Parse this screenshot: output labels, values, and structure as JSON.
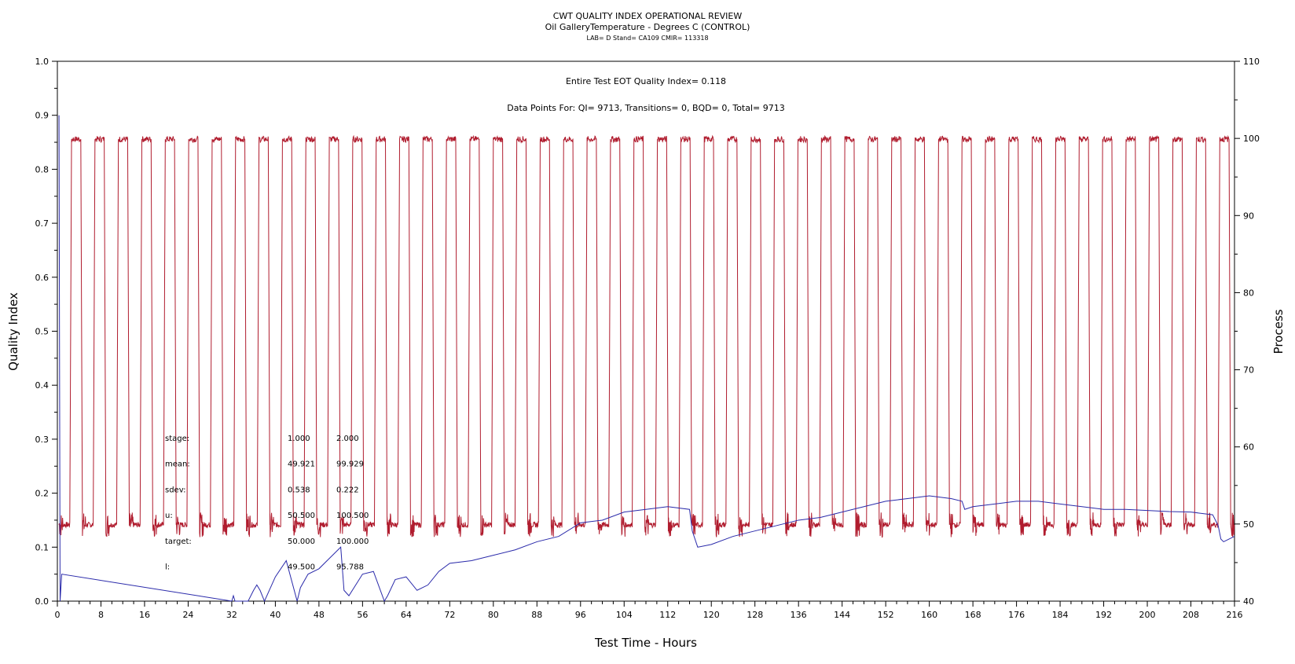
{
  "chart_data": {
    "type": "line",
    "title": "CWT QUALITY INDEX OPERATIONAL REVIEW",
    "subtitle": "Oil GalleryTemperature - Degrees C (CONTROL)",
    "subtitle2": "LAB= D Stand= CA109 CMIR= 113318",
    "xlabel": "Test Time - Hours",
    "ylabel_left": "Quality Index",
    "ylabel_right": "Process",
    "xlim": [
      0,
      216
    ],
    "ylim_left": [
      0.0,
      1.0
    ],
    "ylim_right": [
      40,
      110
    ],
    "x_ticks": [
      "0",
      "8",
      "16",
      "24",
      "32",
      "40",
      "48",
      "56",
      "64",
      "72",
      "80",
      "88",
      "96",
      "104",
      "112",
      "120",
      "128",
      "136",
      "144",
      "152",
      "160",
      "168",
      "176",
      "184",
      "192",
      "200",
      "208",
      "216"
    ],
    "y_ticks_left": [
      "0.0",
      "0.1",
      "0.2",
      "0.3",
      "0.4",
      "0.5",
      "0.6",
      "0.7",
      "0.8",
      "0.9",
      "1.0"
    ],
    "y_ticks_right": [
      "40",
      "50",
      "60",
      "70",
      "80",
      "90",
      "100",
      "110"
    ],
    "annotations": {
      "eot_line": "Entire Test EOT Quality Index=   0.118",
      "points_line": "Data Points For: QI=  9713, Transitions=     0, BQD=     0, Total=  9713"
    },
    "stats": {
      "rows": [
        {
          "label": "stage:",
          "v1": "1.000",
          "v2": "2.000"
        },
        {
          "label": "mean:",
          "v1": "49.921",
          "v2": "99.929"
        },
        {
          "label": "sdev:",
          "v1": "0.538",
          "v2": "0.222"
        },
        {
          "label": "u:",
          "v1": "50.500",
          "v2": "100.500"
        },
        {
          "label": "target:",
          "v1": "50.000",
          "v2": "100.000"
        },
        {
          "label": "l:",
          "v1": "49.500",
          "v2": "95.788"
        }
      ]
    },
    "series": [
      {
        "axis": "right",
        "color": "#b01c2e",
        "cycle": {
          "start": 0.3,
          "period": 4.0,
          "low_level": 49.9,
          "high_level": 99.9,
          "low_duration": 2.0,
          "high_duration": 2.0,
          "ramp": 0.3,
          "cycles": 54
        }
      },
      {
        "axis": "left",
        "color": "#2a2aaa",
        "x": [
          0.3,
          0.5,
          0.8,
          32,
          32.3,
          32.6,
          35,
          36,
          36.6,
          37.2,
          38,
          40,
          42,
          44,
          44.6,
          46,
          48,
          50,
          52,
          52.6,
          53.5,
          56,
          58,
          60,
          60.6,
          62,
          64,
          66,
          68,
          70,
          72,
          76,
          80,
          84,
          88,
          92,
          96,
          100,
          104,
          108,
          112,
          116,
          116.5,
          117.5,
          120,
          124,
          128,
          132,
          136,
          140,
          144,
          148,
          152,
          156,
          160,
          164,
          166,
          166.5,
          168,
          172,
          176,
          180,
          184,
          188,
          192,
          196,
          200,
          204,
          208,
          212,
          213,
          213.5,
          214,
          216
        ],
        "y": [
          0.9,
          0.0,
          0.05,
          0.0,
          0.01,
          0.0,
          0.0,
          0.02,
          0.03,
          0.02,
          0.0,
          0.045,
          0.075,
          0.0,
          0.025,
          0.05,
          0.06,
          0.08,
          0.1,
          0.02,
          0.01,
          0.05,
          0.055,
          0.0,
          0.01,
          0.04,
          0.045,
          0.02,
          0.03,
          0.055,
          0.07,
          0.075,
          0.085,
          0.095,
          0.11,
          0.12,
          0.145,
          0.15,
          0.165,
          0.17,
          0.175,
          0.17,
          0.13,
          0.1,
          0.105,
          0.12,
          0.13,
          0.14,
          0.15,
          0.155,
          0.165,
          0.175,
          0.185,
          0.19,
          0.195,
          0.19,
          0.185,
          0.17,
          0.175,
          0.18,
          0.185,
          0.185,
          0.18,
          0.175,
          0.17,
          0.17,
          0.168,
          0.166,
          0.165,
          0.16,
          0.14,
          0.115,
          0.11,
          0.12
        ]
      }
    ]
  }
}
